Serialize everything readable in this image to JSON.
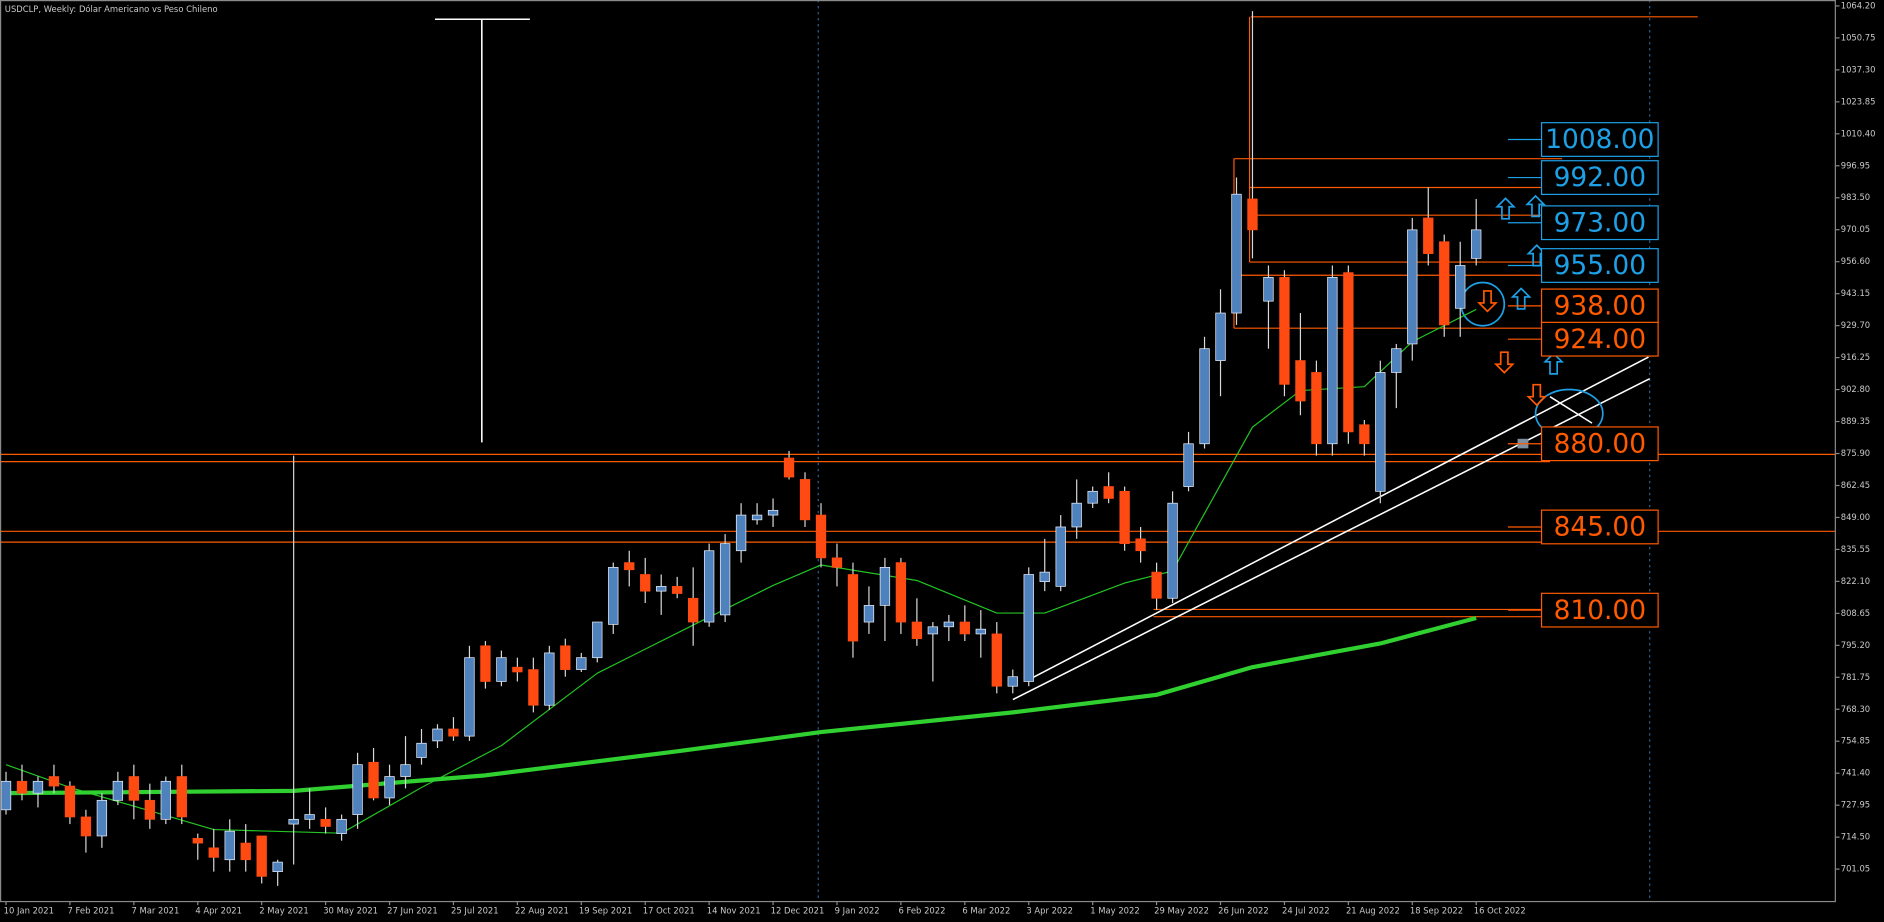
{
  "chart_data": {
    "type": "candlestick",
    "title": "USDCLP, Weekly:  Dólar Americano vs Peso Chileno",
    "up_color": "#4f81bd",
    "down_color": "#ff4a12",
    "ylim": [
      687.4,
      1066.7
    ],
    "yticks": [
      701.05,
      {
        "value": 714.5,
        "label": "714.50"
      },
      727.95,
      {
        "value": 741.4,
        "label": "741.40"
      },
      754.85,
      {
        "value": 768.3,
        "label": "768.30"
      },
      781.75,
      {
        "value": 795.2,
        "label": "795.20"
      },
      808.65,
      {
        "value": 822.1,
        "label": "822.10"
      },
      835.55,
      {
        "value": 849,
        "label": "849.00"
      },
      862.45,
      {
        "value": 875.9,
        "label": "875.90"
      },
      889.35,
      {
        "value": 902.8,
        "label": "902.80"
      },
      916.25,
      {
        "value": 929.7,
        "label": "929.70"
      },
      943.15,
      {
        "value": 956.6,
        "label": "956.60"
      },
      970.05,
      {
        "value": 983.5,
        "label": "983.50"
      },
      996.95,
      {
        "value": 1010.4,
        "label": "1010.40"
      },
      1023.85,
      {
        "value": 1037.3,
        "label": "1037.30"
      },
      1050.75,
      {
        "value": 1064.2,
        "label": "1064.20"
      }
    ],
    "categories": [
      "10 Jan 2021",
      null,
      null,
      null,
      "7 Feb 2021",
      null,
      null,
      null,
      "7 Mar 2021",
      null,
      null,
      null,
      "4 Apr 2021",
      null,
      null,
      null,
      "2 May 2021",
      null,
      null,
      null,
      "30 May 2021",
      null,
      null,
      null,
      "27 Jun 2021",
      null,
      null,
      null,
      "25 Jul 2021",
      null,
      null,
      null,
      "22 Aug 2021",
      null,
      null,
      null,
      "19 Sep 2021",
      null,
      null,
      null,
      "17 Oct 2021",
      null,
      null,
      null,
      "14 Nov 2021",
      null,
      null,
      null,
      "12 Dec 2021",
      null,
      null,
      null,
      "9 Jan 2022",
      null,
      null,
      null,
      "6 Feb 2022",
      null,
      null,
      null,
      "6 Mar 2022",
      null,
      null,
      null,
      "3 Apr 2022",
      null,
      null,
      null,
      "1 May 2022",
      null,
      null,
      null,
      "29 May 2022",
      null,
      null,
      null,
      "26 Jun 2022",
      null,
      null,
      null,
      "24 Jul 2022",
      null,
      null,
      null,
      "21 Aug 2022",
      null,
      null,
      null,
      "18 Sep 2022",
      null,
      null,
      null,
      "16 Oct 2022"
    ],
    "open": [
      726,
      738,
      733,
      740,
      736,
      723,
      715,
      730,
      740,
      730,
      722,
      740,
      714,
      710,
      705,
      712,
      715,
      700,
      720,
      722,
      722,
      716,
      724,
      746,
      731,
      740,
      748,
      755,
      760,
      757,
      795,
      780,
      786,
      785,
      770,
      795,
      785,
      790,
      804,
      830,
      825,
      818,
      820,
      815,
      805,
      808,
      835,
      848,
      850,
      874,
      865,
      850,
      832,
      825,
      805,
      812,
      830,
      805,
      800,
      803,
      805,
      800,
      800,
      778,
      780,
      822,
      820,
      845,
      855,
      862,
      860,
      840,
      826,
      815,
      862,
      880,
      915,
      935,
      983,
      940,
      950,
      915,
      910,
      880,
      952,
      888,
      860,
      910,
      922,
      975,
      965,
      937,
      958
    ],
    "high": [
      742,
      745,
      740,
      745,
      738,
      726,
      733,
      742,
      745,
      737,
      740,
      745,
      716,
      718,
      722,
      720,
      715,
      705,
      875,
      735,
      727,
      724,
      750,
      752,
      745,
      757,
      760,
      762,
      765,
      795,
      797,
      793,
      790,
      790,
      795,
      798,
      792,
      805,
      830,
      835,
      832,
      825,
      824,
      828,
      838,
      842,
      855,
      855,
      857,
      877,
      868,
      855,
      838,
      830,
      820,
      832,
      832,
      815,
      805,
      808,
      812,
      810,
      805,
      785,
      828,
      840,
      850,
      865,
      862,
      868,
      862,
      845,
      830,
      860,
      885,
      925,
      945,
      992,
      1062,
      955,
      953,
      935,
      915,
      955,
      955,
      890,
      915,
      922,
      975,
      988,
      968,
      965,
      983
    ],
    "low": [
      724,
      730,
      727,
      733,
      720,
      708,
      710,
      728,
      722,
      718,
      720,
      720,
      705,
      700,
      700,
      700,
      695,
      694,
      703,
      718,
      716,
      713,
      718,
      730,
      728,
      735,
      745,
      752,
      755,
      755,
      777,
      778,
      780,
      767,
      768,
      782,
      784,
      788,
      800,
      820,
      813,
      808,
      815,
      795,
      803,
      805,
      830,
      846,
      845,
      865,
      845,
      828,
      820,
      790,
      800,
      797,
      800,
      795,
      780,
      797,
      797,
      790,
      775,
      775,
      778,
      818,
      818,
      840,
      853,
      855,
      835,
      830,
      810,
      813,
      860,
      878,
      900,
      930,
      958,
      920,
      900,
      892,
      875,
      875,
      880,
      875,
      855,
      895,
      915,
      955,
      925,
      925,
      955
    ],
    "close": [
      738,
      733,
      738,
      736,
      723,
      715,
      730,
      738,
      730,
      722,
      738,
      723,
      712,
      706,
      717,
      705,
      698,
      704,
      722,
      724,
      719,
      722,
      745,
      731,
      740,
      745,
      754,
      760,
      757,
      790,
      780,
      790,
      784,
      770,
      792,
      785,
      790,
      805,
      828,
      827,
      818,
      820,
      817,
      805,
      835,
      838,
      850,
      850,
      852,
      866,
      848,
      832,
      828,
      797,
      812,
      828,
      805,
      798,
      803,
      805,
      800,
      802,
      778,
      782,
      825,
      826,
      845,
      855,
      860,
      857,
      838,
      835,
      815,
      855,
      880,
      920,
      935,
      985,
      970,
      950,
      905,
      898,
      880,
      950,
      885,
      880,
      910,
      920,
      970,
      960,
      930,
      955,
      970
    ],
    "ma": [
      {
        "color": "#22c422",
        "width": 1,
        "x": [
          0,
          4,
          13,
          21,
          26,
          31,
          37,
          43,
          48,
          51,
          57,
          62,
          65,
          70,
          73,
          78,
          81,
          85,
          88,
          92
        ],
        "values": [
          745,
          735.4,
          717.7,
          716.2,
          735.4,
          753,
          783.5,
          803.7,
          820.4,
          829,
          822.5,
          808.8,
          808.8,
          821.4,
          826.5,
          887,
          902.4,
          904,
          922.9,
          936.5
        ]
      },
      {
        "color": "#2fd02f",
        "width": 3.5,
        "x": [
          0,
          18,
          30,
          42,
          51,
          63,
          72,
          78,
          86,
          92
        ],
        "values": [
          733,
          734,
          740.5,
          750.6,
          758.7,
          767,
          774.4,
          786,
          796,
          806.7
        ]
      }
    ],
    "levels": [
      {
        "value": 1008,
        "label": "1008.00",
        "color": "#1ea0e6"
      },
      {
        "value": 992,
        "label": "992.00",
        "color": "#1ea0e6"
      },
      {
        "value": 973,
        "label": "973.00",
        "color": "#1ea0e6"
      },
      {
        "value": 955,
        "label": "955.00",
        "color": "#1ea0e6"
      },
      {
        "value": 938,
        "label": "938.00",
        "color": "#ff5a00"
      },
      {
        "value": 924,
        "label": "924.00",
        "color": "#ff5a00"
      },
      {
        "value": 880,
        "label": "880.00",
        "color": "#ff5a00"
      },
      {
        "value": 845,
        "label": "845.00",
        "color": "#ff5a00"
      },
      {
        "value": 810,
        "label": "810.00",
        "color": "#ff5a00"
      }
    ]
  }
}
